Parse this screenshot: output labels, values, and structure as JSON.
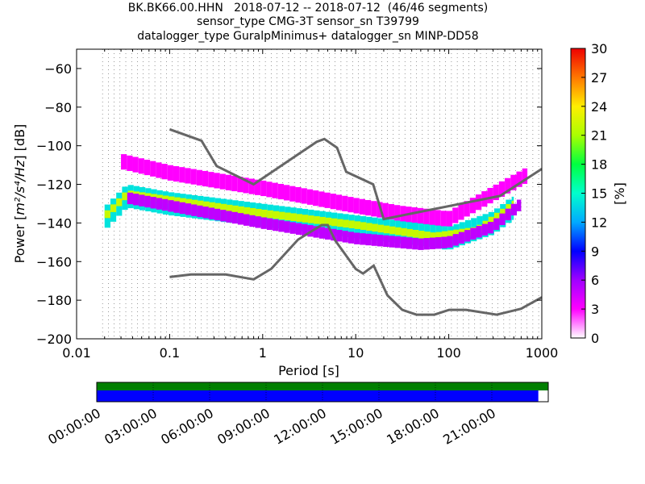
{
  "title_lines": [
    "BK.BK66.00.HHN   2018-07-12 -- 2018-07-12  (46/46 segments)",
    "sensor_type CMG-3T sensor_sn T39799",
    "datalogger_type GuralpMinimus+ datalogger_sn MINP-DD58"
  ],
  "chart_data": {
    "type": "heatmap",
    "xlabel": "Period [s]",
    "ylabel_prefix": "Power [",
    "ylabel_unit_math": "m²/s⁴/Hz",
    "ylabel_suffix": "] [dB]",
    "x_scale": "log",
    "xlim": [
      0.01,
      1000
    ],
    "ylim": [
      -200,
      -50
    ],
    "x_ticks": [
      0.01,
      0.1,
      1,
      10,
      100,
      1000
    ],
    "x_tick_labels": [
      "0.01",
      "0.1",
      "1",
      "10",
      "100",
      "1000"
    ],
    "y_ticks": [
      -200,
      -180,
      -160,
      -140,
      -120,
      -100,
      -80,
      -60
    ],
    "y_tick_labels": [
      "−200",
      "−180",
      "−160",
      "−140",
      "−120",
      "−100",
      "−80",
      "−60"
    ],
    "grid": "dotted vertical at period bins",
    "colorbar": {
      "label": "[%]",
      "range": [
        0,
        30
      ],
      "ticks": [
        "0",
        "3",
        "6",
        "9",
        "12",
        "15",
        "18",
        "21",
        "24",
        "27",
        "30"
      ],
      "colormap": "pqlx"
    },
    "noise_models": {
      "color": "#666666",
      "nhnm": [
        [
          0.1,
          -91.5
        ],
        [
          0.22,
          -97.4
        ],
        [
          0.32,
          -110.5
        ],
        [
          0.8,
          -120
        ],
        [
          3.8,
          -98
        ],
        [
          4.6,
          -96.5
        ],
        [
          6.3,
          -101
        ],
        [
          7.9,
          -113.5
        ],
        [
          15.4,
          -120
        ],
        [
          20,
          -138
        ],
        [
          354.8,
          -126
        ],
        [
          1000,
          -112
        ]
      ],
      "nlnm": [
        [
          0.1,
          -168
        ],
        [
          0.17,
          -166.7
        ],
        [
          0.4,
          -166.7
        ],
        [
          0.8,
          -169.2
        ],
        [
          1.24,
          -163.7
        ],
        [
          2.4,
          -148.6
        ],
        [
          4.3,
          -141.1
        ],
        [
          5,
          -141.1
        ],
        [
          6,
          -149
        ],
        [
          10,
          -163.8
        ],
        [
          12,
          -166.2
        ],
        [
          15.6,
          -162.1
        ],
        [
          21.9,
          -177.5
        ],
        [
          31.6,
          -185
        ],
        [
          45,
          -187.5
        ],
        [
          70,
          -187.5
        ],
        [
          101,
          -185
        ],
        [
          154,
          -185
        ],
        [
          328,
          -187.5
        ],
        [
          600,
          -184.4
        ],
        [
          1000,
          -178.5
        ]
      ]
    },
    "psd_bands": [
      {
        "name": "high-occurrence core",
        "color_pct": 14,
        "points": [
          [
            0.02,
            -138
          ],
          [
            0.035,
            -126
          ],
          [
            0.1,
            -130
          ],
          [
            1,
            -136
          ],
          [
            10,
            -142
          ],
          [
            50,
            -146
          ],
          [
            100,
            -148
          ],
          [
            300,
            -140
          ],
          [
            500,
            -132
          ]
        ],
        "spread_db": 6
      },
      {
        "name": "median track",
        "color_pct": 22,
        "points": [
          [
            0.02,
            -137
          ],
          [
            0.035,
            -125
          ],
          [
            1,
            -135
          ],
          [
            10,
            -141
          ],
          [
            70,
            -147
          ],
          [
            200,
            -144
          ],
          [
            400,
            -134
          ],
          [
            500,
            -130
          ]
        ],
        "spread_db": 2
      },
      {
        "name": "upper outliers",
        "color_pct": 3,
        "points": [
          [
            0.03,
            -108
          ],
          [
            0.1,
            -114
          ],
          [
            1,
            -122
          ],
          [
            10,
            -131
          ],
          [
            30,
            -135
          ],
          [
            100,
            -138
          ],
          [
            300,
            -125
          ],
          [
            700,
            -115
          ]
        ],
        "spread_db": 4
      },
      {
        "name": "lower outliers",
        "color_pct": 5,
        "points": [
          [
            0.035,
            -127
          ],
          [
            1,
            -140
          ],
          [
            10,
            -148
          ],
          [
            50,
            -151
          ],
          [
            100,
            -150
          ],
          [
            300,
            -142
          ],
          [
            600,
            -130
          ]
        ],
        "spread_db": 3
      }
    ],
    "data_span_x": [
      0.019,
      700
    ]
  },
  "timeline": {
    "tick_labels": [
      "00:00:00",
      "03:00:00",
      "06:00:00",
      "09:00:00",
      "12:00:00",
      "15:00:00",
      "18:00:00",
      "21:00:00"
    ],
    "top_bar_color": "#007f00",
    "bottom_bar_color": "#0000ff",
    "bottom_bar_coverage_fraction": 0.978
  }
}
